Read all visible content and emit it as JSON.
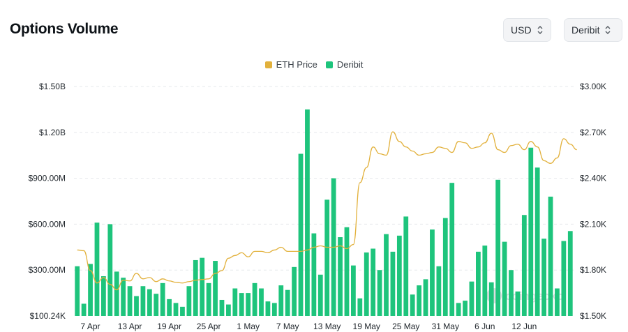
{
  "header": {
    "title": "Options Volume"
  },
  "controls": {
    "currency": {
      "label": "USD"
    },
    "exchange": {
      "label": "Deribit"
    }
  },
  "legend": [
    {
      "label": "ETH Price",
      "color": "#e2b13c"
    },
    {
      "label": "Deribit",
      "color": "#1ec47c"
    }
  ],
  "watermark": {
    "text": "coingecko"
  },
  "chart_data": {
    "type": "bar",
    "title": "Options Volume",
    "grid": true,
    "legend_position": "top-center",
    "x_tick_labels": [
      "7 Apr",
      "13 Apr",
      "19 Apr",
      "25 Apr",
      "1 May",
      "7 May",
      "13 May",
      "19 May",
      "25 May",
      "31 May",
      "6 Jun",
      "12 Jun"
    ],
    "y_left": {
      "tick_labels": [
        "$100.24K",
        "$300.00M",
        "$600.00M",
        "$900.00M",
        "$1.20B",
        "$1.50B"
      ],
      "ylim": [
        0,
        1500000000
      ]
    },
    "y_right": {
      "tick_labels": [
        "$1.50K",
        "$1.80K",
        "$2.10K",
        "$2.40K",
        "$2.70K",
        "$3.00K"
      ],
      "ylim": [
        1330,
        3000
      ]
    },
    "series": [
      {
        "name": "Deribit",
        "type": "bar",
        "axis": "left",
        "color": "#1ec47c",
        "values": [
          325,
          80,
          340,
          610,
          260,
          600,
          290,
          250,
          195,
          130,
          195,
          175,
          145,
          215,
          110,
          85,
          60,
          195,
          365,
          380,
          215,
          360,
          105,
          75,
          180,
          150,
          150,
          215,
          180,
          95,
          85,
          200,
          170,
          320,
          1060,
          1350,
          540,
          270,
          760,
          900,
          515,
          580,
          330,
          115,
          415,
          440,
          300,
          535,
          420,
          525,
          650,
          140,
          200,
          240,
          565,
          325,
          640,
          870,
          85,
          100,
          225,
          420,
          460,
          220,
          890,
          485,
          300,
          160,
          660,
          1100,
          970,
          505,
          780,
          180,
          490,
          555
        ]
      },
      {
        "name": "ETH Price",
        "type": "line",
        "axis": "right",
        "color": "#e2b13c",
        "values": [
          1810,
          1805,
          1660,
          1570,
          1610,
          1560,
          1520,
          1590,
          1585,
          1640,
          1600,
          1610,
          1580,
          1600,
          1585,
          1575,
          1570,
          1580,
          1590,
          1595,
          1600,
          1640,
          1660,
          1750,
          1770,
          1790,
          1760,
          1800,
          1800,
          1790,
          1810,
          1830,
          1800,
          1800,
          1800,
          1810,
          1830,
          1840,
          1830,
          1830,
          1840,
          1820,
          1850,
          2300,
          2410,
          2560,
          2510,
          2500,
          2670,
          2600,
          2560,
          2530,
          2500,
          2510,
          2520,
          2560,
          2550,
          2520,
          2600,
          2590,
          2550,
          2560,
          2590,
          2660,
          2540,
          2520,
          2570,
          2580,
          2540,
          2600,
          2560,
          2460,
          2440,
          2480,
          2620,
          2580,
          2540
        ]
      }
    ]
  }
}
